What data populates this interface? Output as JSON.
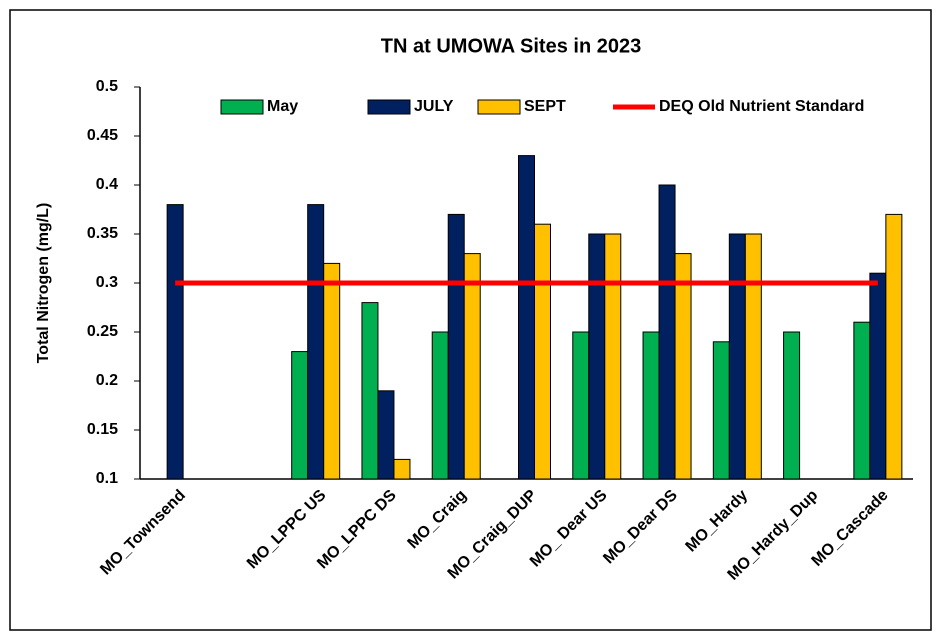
{
  "chart_data": {
    "type": "bar",
    "title": "TN at UMOWA Sites in 2023",
    "y_label": "Total Nitrogen (mg/L)",
    "categories": [
      "MO_Townsend",
      null,
      "MO_LPPC US",
      "MO_LPPC DS",
      "MO_Craig",
      "MO_Craig_DUP",
      "MO_ Dear US",
      "MO_Dear DS",
      "MO_Hardy",
      "MO_Hardy_Dup",
      "MO_Cascade"
    ],
    "series": [
      {
        "name": "May",
        "color": "#00b050",
        "values": [
          null,
          null,
          0.23,
          0.28,
          0.25,
          null,
          0.25,
          0.25,
          0.24,
          0.25,
          0.26
        ]
      },
      {
        "name": "JULY",
        "color": "#002060",
        "values": [
          0.38,
          null,
          0.38,
          0.19,
          0.37,
          0.43,
          0.35,
          0.4,
          0.35,
          null,
          0.31
        ]
      },
      {
        "name": "SEPT",
        "color": "#ffc000",
        "values": [
          null,
          null,
          0.32,
          0.12,
          0.33,
          0.36,
          0.35,
          0.33,
          0.35,
          null,
          0.37
        ]
      },
      {
        "name": "DEQ Old Nutrient Standard",
        "type": "line",
        "color": "#ff0000",
        "values": [
          0.3,
          0.3,
          0.3,
          0.3,
          0.3,
          0.3,
          0.3,
          0.3,
          0.3,
          0.3,
          0.3
        ]
      }
    ],
    "ylim": [
      0.1,
      0.5
    ],
    "yticks": [
      0.1,
      0.15,
      0.2,
      0.25,
      0.3,
      0.35,
      0.4,
      0.45,
      0.5
    ],
    "grid": false,
    "legend": "top"
  }
}
